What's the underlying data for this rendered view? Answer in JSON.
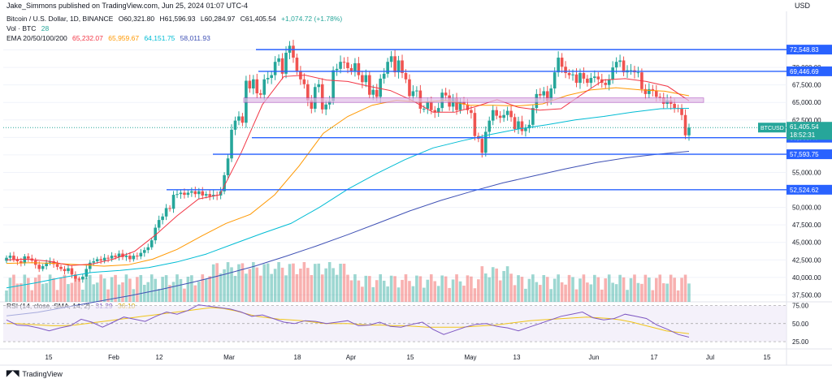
{
  "header": {
    "publisher": "Jake_Simmons published on TradingView.com, Jun 25, 2024 01:07 UTC-4",
    "currency": "USD"
  },
  "legend": {
    "symbol": "Bitcoin / U.S. Dollar, 1D, BINANCE",
    "open": "O60,321.80",
    "high": "H61,596.93",
    "low": "L60,284.97",
    "close": "C61,405.54",
    "change": "+1,074.72 (+1.78%)",
    "vol_label": "Vol · BTC",
    "vol_value": "28",
    "ema_label": "EMA 20/50/100/200",
    "ema20": "65,232.07",
    "ema50": "65,959.67",
    "ema100": "64,151.75",
    "ema200": "58,011.93",
    "rsi_label": "RSI (14, close, SMA, 14, 2)",
    "rsi_value": "31.29",
    "rsi_sma": "36.10"
  },
  "colors": {
    "up": "#26a69a",
    "down": "#ef5350",
    "ema20": "#f23645",
    "ema50": "#ff9800",
    "ema100": "#00bcd4",
    "ema200": "#3f51b5",
    "hline": "#2962ff",
    "rsi": "#7e57c2",
    "rsi_sma": "#f0c419"
  },
  "chart_data": {
    "type": "candlestick",
    "y_ticks": [
      "72,500.00",
      "70,000.00",
      "67,500.00",
      "65,000.00",
      "62,500.00",
      "60,000.00",
      "57,500.00",
      "55,000.00",
      "52,500.00",
      "50,000.00",
      "47,500.00",
      "45,000.00",
      "42,500.00",
      "40,000.00",
      "37,500.00"
    ],
    "ylim": [
      36500,
      75000
    ],
    "x_ticks": [
      "15",
      "Feb",
      "12",
      "Mar",
      "18",
      "Apr",
      "15",
      "May",
      "13",
      "Jun",
      "17",
      "Jul",
      "15"
    ],
    "horizontal_levels": [
      {
        "label": "72,548.83",
        "value": 72548.83
      },
      {
        "label": "69,446.69",
        "value": 69446.69
      },
      {
        "label": "59,963.47",
        "value": 59963.47
      },
      {
        "label": "57,593.75",
        "value": 57593.75
      },
      {
        "label": "52,524.62",
        "value": 52524.62
      }
    ],
    "resistance_zone": [
      65000,
      65650
    ],
    "last_price": {
      "label": "BTCUSD",
      "value": "61,405.54",
      "countdown": "18:52:31"
    },
    "close_series": [
      42800,
      43100,
      42600,
      42300,
      42000,
      43000,
      42700,
      42400,
      41800,
      41200,
      41600,
      42100,
      42300,
      41900,
      41500,
      41200,
      40900,
      41300,
      40400,
      39800,
      39700,
      40100,
      41200,
      42100,
      42300,
      42600,
      42400,
      42800,
      42700,
      43100,
      42900,
      43400,
      42900,
      43100,
      42600,
      43100,
      43000,
      43500,
      43900,
      44300,
      45300,
      47100,
      48200,
      48700,
      49900,
      49800,
      51800,
      51900,
      52100,
      51800,
      52100,
      52300,
      51900,
      52300,
      51700,
      51900,
      51600,
      51800,
      51700,
      52300,
      54600,
      57000,
      61100,
      62400,
      63000,
      62100,
      68100,
      67000,
      68300,
      66300,
      66100,
      68300,
      68500,
      68900,
      70800,
      71300,
      69100,
      72100,
      73100,
      71400,
      69500,
      68300,
      67600,
      65300,
      64100,
      67200,
      67600,
      64000,
      64700,
      65200,
      69600,
      69800,
      70800,
      70700,
      69900,
      69500,
      70600,
      68900,
      67900,
      68900,
      66100,
      66800,
      65800,
      68400,
      69100,
      70800,
      71600,
      69300,
      71000,
      69200,
      68300,
      65900,
      66600,
      66700,
      64100,
      64100,
      65000,
      63900,
      63600,
      64200,
      66400,
      66000,
      64400,
      65600,
      63900,
      65100,
      64700,
      63900,
      63500,
      60200,
      59800,
      57800,
      60800,
      62400,
      63900,
      63100,
      62800,
      63200,
      63800,
      62900,
      61200,
      62300,
      60900,
      61300,
      61800,
      64200,
      66200,
      66000,
      66600,
      65200,
      67000,
      69300,
      71400,
      70100,
      69200,
      68900,
      69000,
      67800,
      69200,
      68400,
      67800,
      68500,
      68700,
      68300,
      67800,
      67500,
      68300,
      70000,
      70800,
      71000,
      69300,
      69600,
      69600,
      69300,
      69300,
      66900,
      66200,
      66900,
      66700,
      65800,
      65700,
      64800,
      65300,
      64800,
      64200,
      64100,
      63200,
      60300,
      61405.54
    ],
    "x_start_date": "2024-01-01",
    "ema20": [
      42500,
      42600,
      42300,
      41700,
      41900,
      42600,
      43700,
      46100,
      48800,
      51200,
      51800,
      57800,
      64700,
      68700,
      68900,
      68200,
      68000,
      67300,
      66700,
      65300,
      63600,
      63600,
      64400,
      65400,
      64300,
      63900,
      64100,
      66200,
      68200,
      68400,
      68000,
      67300,
      65232
    ],
    "ema50": [
      42000,
      42100,
      42000,
      41800,
      41600,
      41800,
      42600,
      44000,
      45900,
      47700,
      49000,
      51800,
      55900,
      60600,
      63000,
      64600,
      65300,
      65000,
      65300,
      64600,
      64600,
      64500,
      64800,
      66000,
      66800,
      67100,
      66800,
      66600,
      65960
    ],
    "ema100": [
      38500,
      39200,
      40000,
      40700,
      41000,
      41400,
      42200,
      43300,
      44800,
      46300,
      47700,
      50000,
      52600,
      54800,
      56800,
      58500,
      59500,
      60400,
      61200,
      61800,
      62500,
      63000,
      63600,
      64100,
      64152
    ],
    "ema200": [
      34500,
      35000,
      35800,
      36600,
      37400,
      38300,
      39300,
      40400,
      41600,
      43000,
      44500,
      46100,
      47800,
      49500,
      51000,
      52300,
      53500,
      54500,
      55500,
      56400,
      57100,
      57600,
      58012
    ],
    "rsi": {
      "levels": [
        "75.00",
        "50.00",
        "25.00"
      ],
      "ylim": [
        15,
        80
      ],
      "rsi_series": [
        55,
        48,
        47,
        44,
        40,
        44,
        47,
        56,
        52,
        45,
        52,
        59,
        56,
        53,
        60,
        66,
        63,
        68,
        76,
        74,
        72,
        70,
        66,
        60,
        62,
        57,
        52,
        50,
        54,
        53,
        50,
        52,
        54,
        47,
        48,
        52,
        46,
        45,
        49,
        52,
        42,
        35,
        40,
        45,
        49,
        50,
        46,
        44,
        40,
        45,
        50,
        55,
        60,
        63,
        66,
        58,
        55,
        57,
        63,
        60,
        57,
        48,
        42,
        35,
        31.29
      ],
      "sma_series": [
        50,
        50,
        49,
        48,
        47,
        47,
        48,
        50,
        52,
        54,
        56,
        58,
        60,
        62,
        64,
        66,
        68,
        70,
        72,
        71,
        68,
        64,
        60,
        58,
        56,
        55,
        54,
        52,
        50,
        50,
        50,
        49,
        48,
        48,
        47,
        47,
        46,
        45,
        45,
        45,
        45,
        46,
        47,
        48,
        50,
        52,
        54,
        55,
        56,
        57,
        58,
        59,
        58,
        57,
        55,
        52,
        48,
        44,
        40,
        38,
        36.1
      ]
    }
  }
}
